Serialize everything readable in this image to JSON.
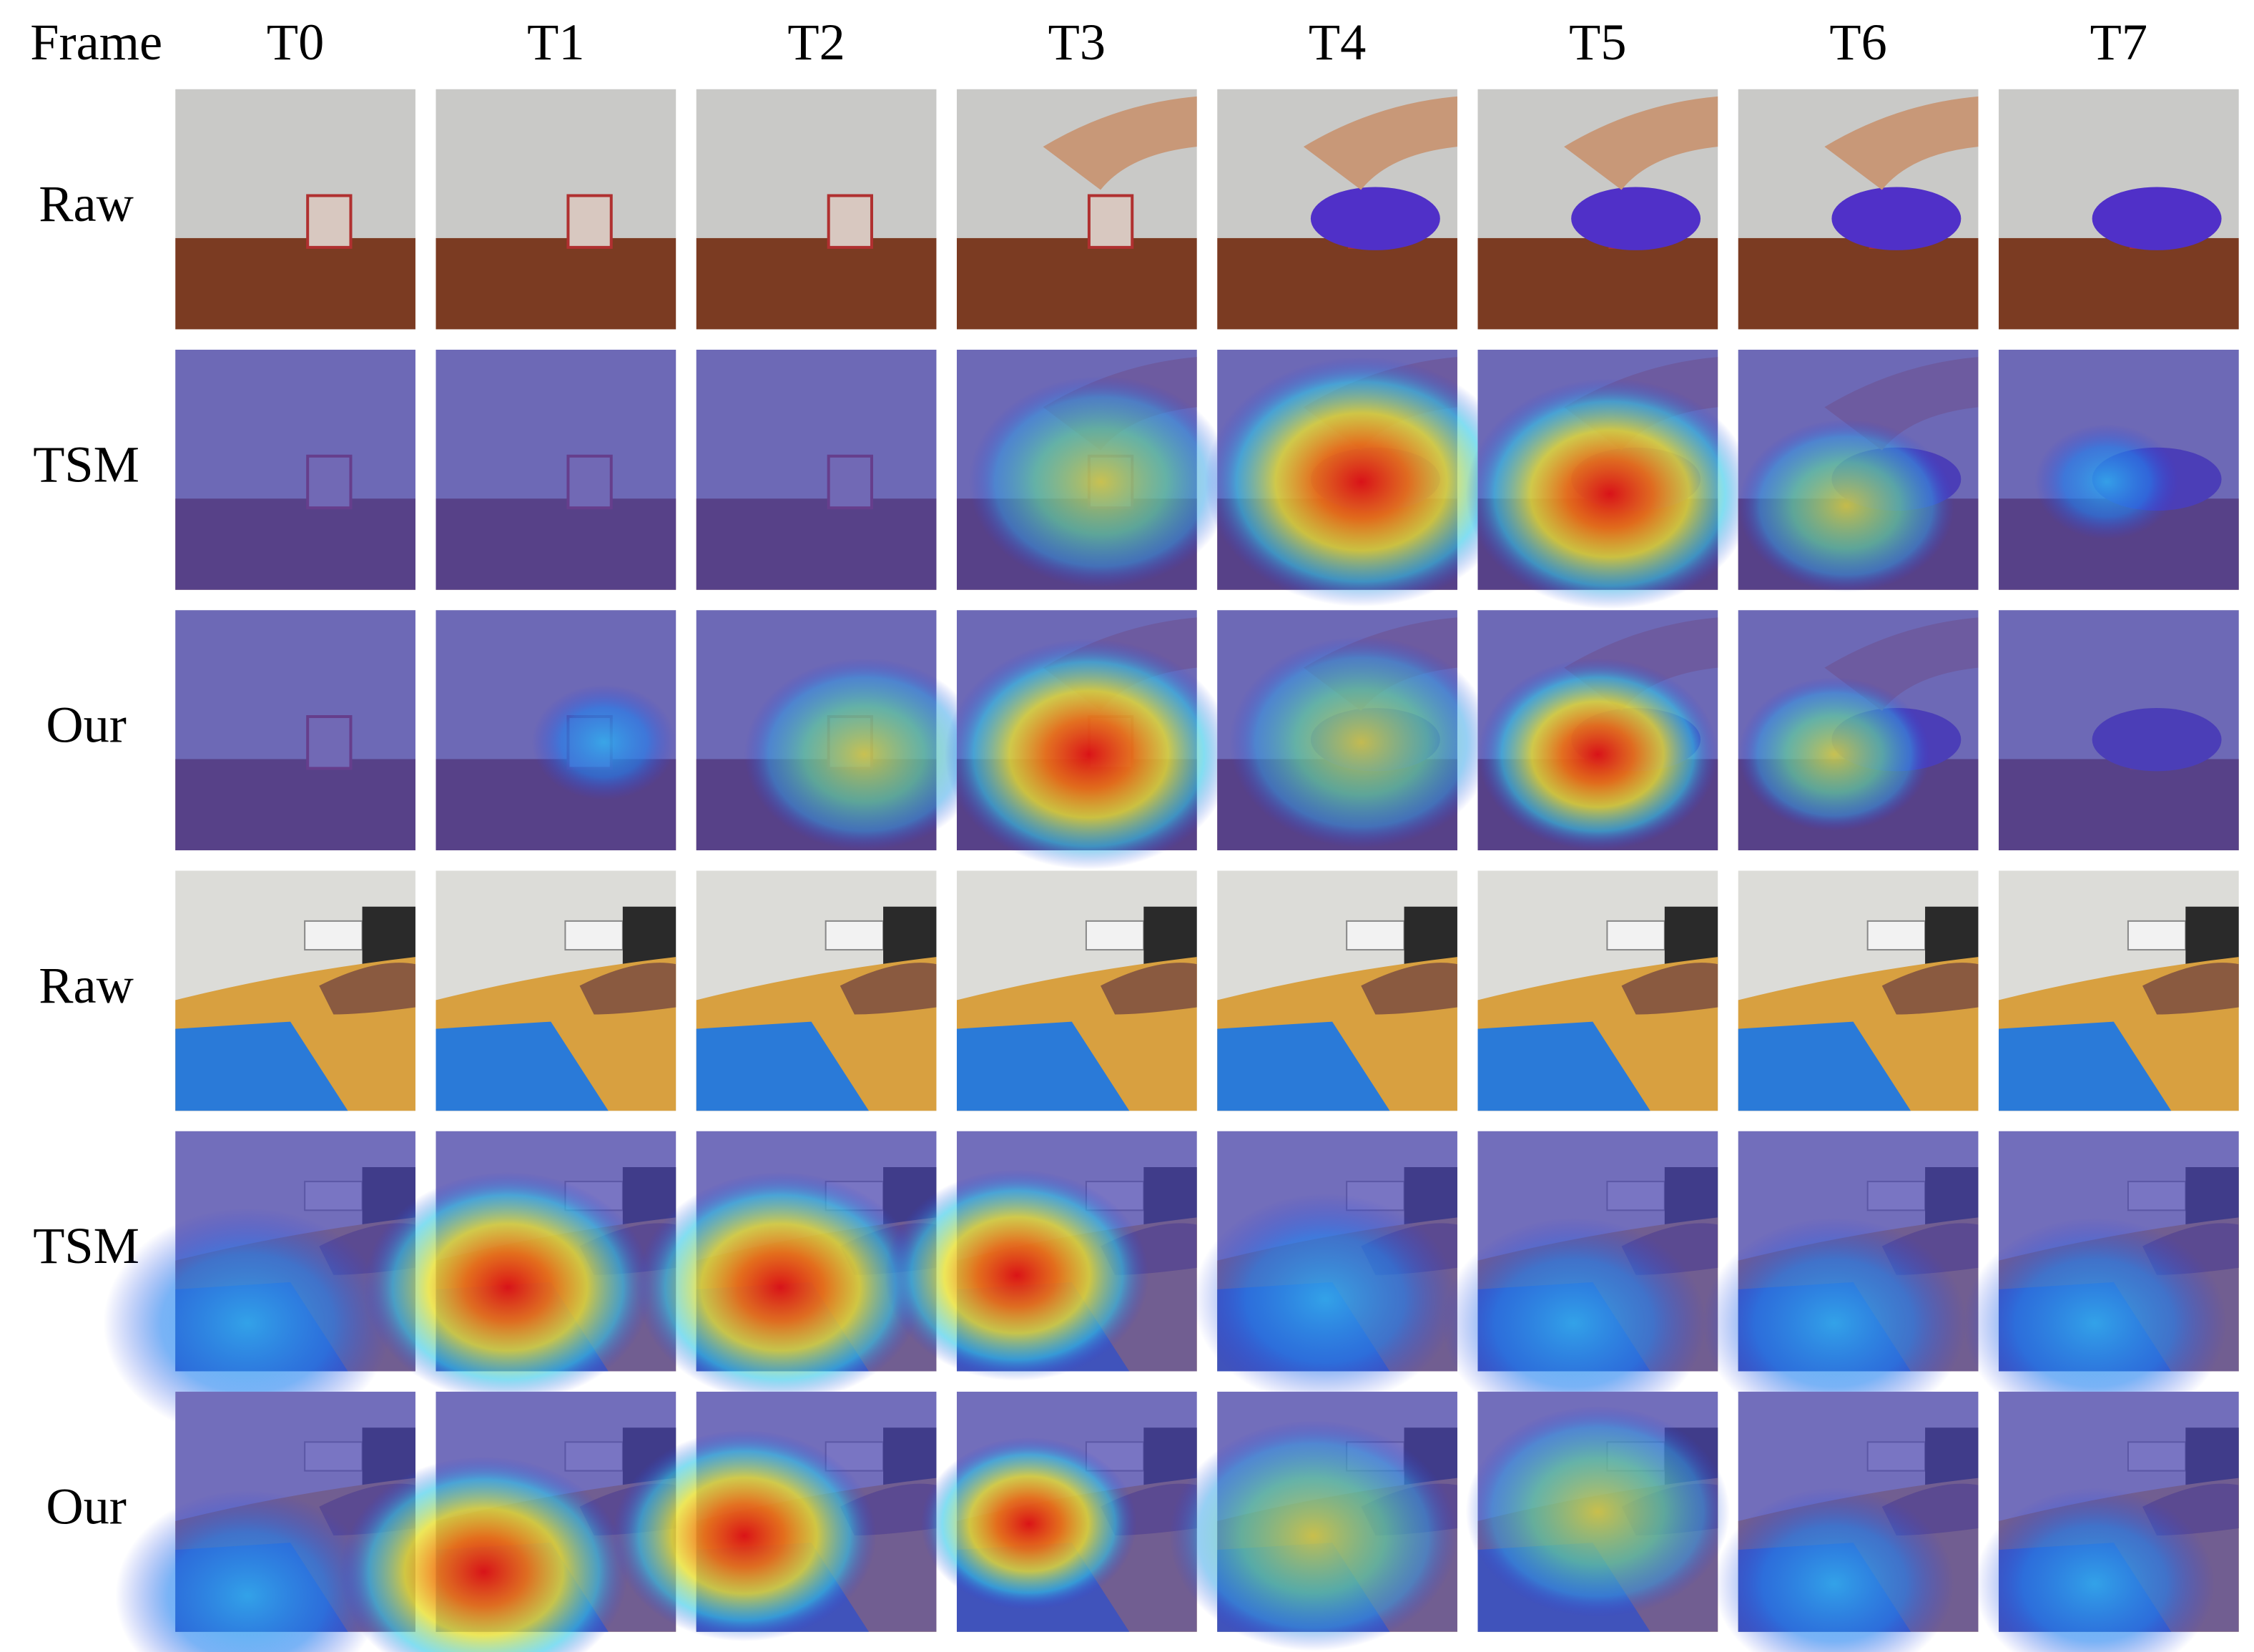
{
  "header": {
    "corner": "Frame",
    "columns": [
      "T0",
      "T1",
      "T2",
      "T3",
      "T4",
      "T5",
      "T6",
      "T7"
    ]
  },
  "rows": [
    "Raw",
    "TSM",
    "Our",
    "Raw",
    "TSM",
    "Our"
  ]
}
